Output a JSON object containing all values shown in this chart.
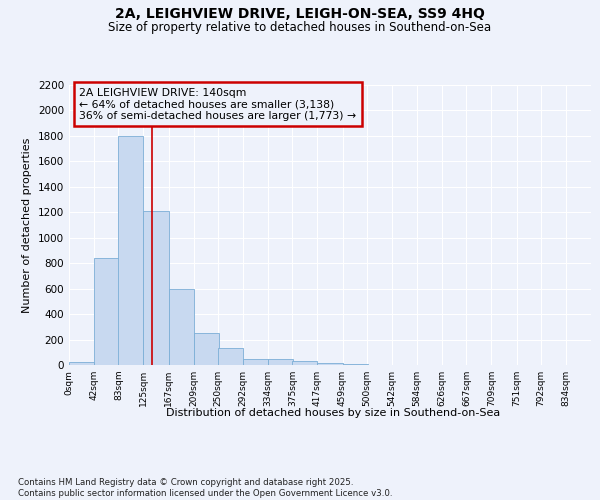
{
  "title1": "2A, LEIGHVIEW DRIVE, LEIGH-ON-SEA, SS9 4HQ",
  "title2": "Size of property relative to detached houses in Southend-on-Sea",
  "xlabel": "Distribution of detached houses by size in Southend-on-Sea",
  "ylabel": "Number of detached properties",
  "bar_values": [
    20,
    840,
    1800,
    1210,
    600,
    255,
    130,
    48,
    45,
    30,
    18,
    8,
    0,
    0,
    0,
    0,
    0,
    0,
    0,
    0,
    0
  ],
  "bin_edges": [
    0,
    42,
    83,
    125,
    167,
    209,
    250,
    292,
    334,
    375,
    417,
    459,
    500,
    542,
    584,
    626,
    667,
    709,
    751,
    792,
    834
  ],
  "xlabels": [
    "0sqm",
    "42sqm",
    "83sqm",
    "125sqm",
    "167sqm",
    "209sqm",
    "250sqm",
    "292sqm",
    "334sqm",
    "375sqm",
    "417sqm",
    "459sqm",
    "500sqm",
    "542sqm",
    "584sqm",
    "626sqm",
    "667sqm",
    "709sqm",
    "751sqm",
    "792sqm",
    "834sqm"
  ],
  "bar_color": "#c8d9f0",
  "bar_edgecolor": "#7baed6",
  "vline_x": 140,
  "vline_color": "#cc0000",
  "annotation_title": "2A LEIGHVIEW DRIVE: 140sqm",
  "annotation_line1": "← 64% of detached houses are smaller (3,138)",
  "annotation_line2": "36% of semi-detached houses are larger (1,773) →",
  "annotation_box_color": "#cc0000",
  "ylim": [
    0,
    2200
  ],
  "yticks": [
    0,
    200,
    400,
    600,
    800,
    1000,
    1200,
    1400,
    1600,
    1800,
    2000,
    2200
  ],
  "bg_color": "#eef2fb",
  "grid_color": "#ffffff",
  "footer_line1": "Contains HM Land Registry data © Crown copyright and database right 2025.",
  "footer_line2": "Contains public sector information licensed under the Open Government Licence v3.0."
}
